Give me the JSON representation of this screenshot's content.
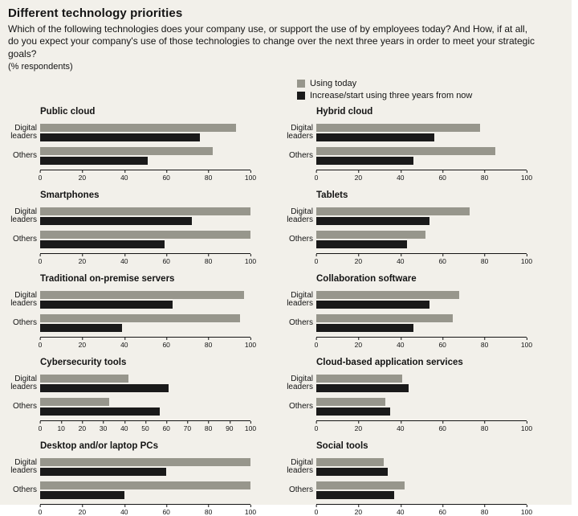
{
  "header": {
    "title": "Different technology priorities",
    "subtitle": "Which of the following technologies does your company use, or support the use of by employees today? And How, if at all, do you expect your company's use of those technologies to change over the next three years in order to meet your strategic goals?",
    "note": "(% respondents)"
  },
  "legend": [
    {
      "label": "Using today",
      "color": "#97968c"
    },
    {
      "label": "Increase/start using three years from now",
      "color": "#1a1a1a"
    }
  ],
  "colors": {
    "background": "#f2f0ea",
    "axis": "#141414",
    "text": "#141414"
  },
  "chart_data": [
    {
      "type": "bar",
      "orientation": "horizontal",
      "title": "Public cloud",
      "categories": [
        "Digital leaders",
        "Others"
      ],
      "series": [
        {
          "name": "Using today",
          "values": [
            93,
            82
          ]
        },
        {
          "name": "Increase/start using three years from now",
          "values": [
            76,
            51
          ]
        }
      ],
      "xlim": [
        0,
        100
      ],
      "tick_step": 20
    },
    {
      "type": "bar",
      "orientation": "horizontal",
      "title": "Hybrid cloud",
      "categories": [
        "Digital leaders",
        "Others"
      ],
      "series": [
        {
          "name": "Using today",
          "values": [
            78,
            85
          ]
        },
        {
          "name": "Increase/start using three years from now",
          "values": [
            56,
            46
          ]
        }
      ],
      "xlim": [
        0,
        100
      ],
      "tick_step": 20
    },
    {
      "type": "bar",
      "orientation": "horizontal",
      "title": "Smartphones",
      "categories": [
        "Digital leaders",
        "Others"
      ],
      "series": [
        {
          "name": "Using today",
          "values": [
            100,
            100
          ]
        },
        {
          "name": "Increase/start using three years from now",
          "values": [
            72,
            59
          ]
        }
      ],
      "xlim": [
        0,
        100
      ],
      "tick_step": 20
    },
    {
      "type": "bar",
      "orientation": "horizontal",
      "title": "Tablets",
      "categories": [
        "Digital leaders",
        "Others"
      ],
      "series": [
        {
          "name": "Using today",
          "values": [
            73,
            52
          ]
        },
        {
          "name": "Increase/start using three years from now",
          "values": [
            54,
            43
          ]
        }
      ],
      "xlim": [
        0,
        100
      ],
      "tick_step": 20
    },
    {
      "type": "bar",
      "orientation": "horizontal",
      "title": "Traditional on-premise servers",
      "categories": [
        "Digital leaders",
        "Others"
      ],
      "series": [
        {
          "name": "Using today",
          "values": [
            97,
            95
          ]
        },
        {
          "name": "Increase/start using three years from now",
          "values": [
            63,
            39
          ]
        }
      ],
      "xlim": [
        0,
        100
      ],
      "tick_step": 20
    },
    {
      "type": "bar",
      "orientation": "horizontal",
      "title": "Collaboration software",
      "categories": [
        "Digital leaders",
        "Others"
      ],
      "series": [
        {
          "name": "Using today",
          "values": [
            68,
            65
          ]
        },
        {
          "name": "Increase/start using three years from now",
          "values": [
            54,
            46
          ]
        }
      ],
      "xlim": [
        0,
        100
      ],
      "tick_step": 20
    },
    {
      "type": "bar",
      "orientation": "horizontal",
      "title": "Cybersecurity tools",
      "categories": [
        "Digital leaders",
        "Others"
      ],
      "series": [
        {
          "name": "Using today",
          "values": [
            42,
            33
          ]
        },
        {
          "name": "Increase/start using three years from now",
          "values": [
            61,
            57
          ]
        }
      ],
      "xlim": [
        0,
        100
      ],
      "tick_step": 10
    },
    {
      "type": "bar",
      "orientation": "horizontal",
      "title": "Cloud-based application services",
      "categories": [
        "Digital leaders",
        "Others"
      ],
      "series": [
        {
          "name": "Using today",
          "values": [
            41,
            33
          ]
        },
        {
          "name": "Increase/start using three years from now",
          "values": [
            44,
            35
          ]
        }
      ],
      "xlim": [
        0,
        100
      ],
      "tick_step": 20
    },
    {
      "type": "bar",
      "orientation": "horizontal",
      "title": "Desktop and/or laptop PCs",
      "categories": [
        "Digital leaders",
        "Others"
      ],
      "series": [
        {
          "name": "Using today",
          "values": [
            100,
            100
          ]
        },
        {
          "name": "Increase/start using three years from now",
          "values": [
            60,
            40
          ]
        }
      ],
      "xlim": [
        0,
        100
      ],
      "tick_step": 20
    },
    {
      "type": "bar",
      "orientation": "horizontal",
      "title": "Social tools",
      "categories": [
        "Digital leaders",
        "Others"
      ],
      "series": [
        {
          "name": "Using today",
          "values": [
            32,
            42
          ]
        },
        {
          "name": "Increase/start using three years from now",
          "values": [
            34,
            37
          ]
        }
      ],
      "xlim": [
        0,
        100
      ],
      "tick_step": 20
    }
  ]
}
